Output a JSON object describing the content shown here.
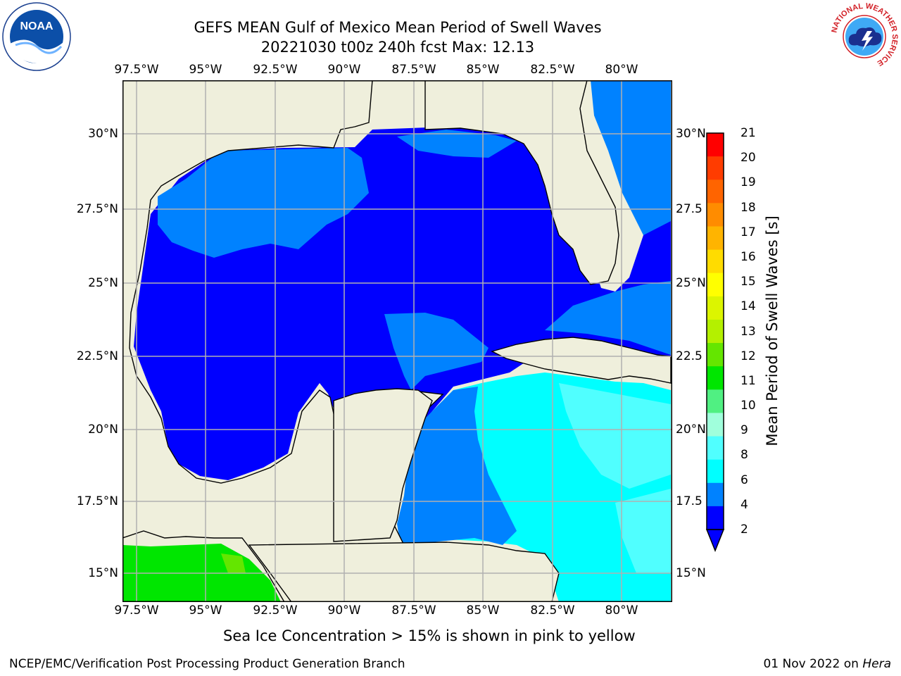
{
  "title": {
    "line1": "GEFS MEAN Gulf of Mexico Mean Period of Swell Waves",
    "line2": "20221030 t00z 240h fcst   Max: 12.13"
  },
  "map": {
    "lon_labels": [
      "97.5°W",
      "95°W",
      "92.5°W",
      "90°W",
      "87.5°W",
      "85°W",
      "82.5°W",
      "80°W"
    ],
    "lat_labels_left": [
      "30°N",
      "27.5°N",
      "25°N",
      "22.5°N",
      "20°N",
      "17.5°N",
      "15°N"
    ],
    "lat_labels_right": [
      "30°N",
      "27.5",
      "25°N",
      "22.5",
      "20°N",
      "17.5",
      "15°N"
    ],
    "land_color": "#efefdc",
    "grid_color": "#b0b0b0"
  },
  "colorbar": {
    "label": "Mean Period of Swell Waves [s]",
    "ticks": [
      "21",
      "20",
      "19",
      "18",
      "17",
      "16",
      "15",
      "14",
      "13",
      "12",
      "11",
      "10",
      "9",
      "8",
      "6",
      "4",
      "2"
    ],
    "colors": [
      "#ff0000",
      "#ff3c00",
      "#ff6400",
      "#ff8c00",
      "#ffb400",
      "#ffdc00",
      "#ffff00",
      "#dcf500",
      "#b4f000",
      "#64e600",
      "#00e600",
      "#50f082",
      "#a0ffdc",
      "#50ffff",
      "#00ffff",
      "#0082ff",
      "#0000ff"
    ]
  },
  "note": "Sea Ice Concentration > 15% is shown in pink to yellow",
  "footer": {
    "left": "NCEP/EMC/Verification Post Processing Product Generation Branch",
    "right_date": "01 Nov 2022 on ",
    "right_host": "Hera"
  },
  "logos": {
    "left": "NOAA",
    "right_ring": "NATIONAL WEATHER SERVICE"
  }
}
